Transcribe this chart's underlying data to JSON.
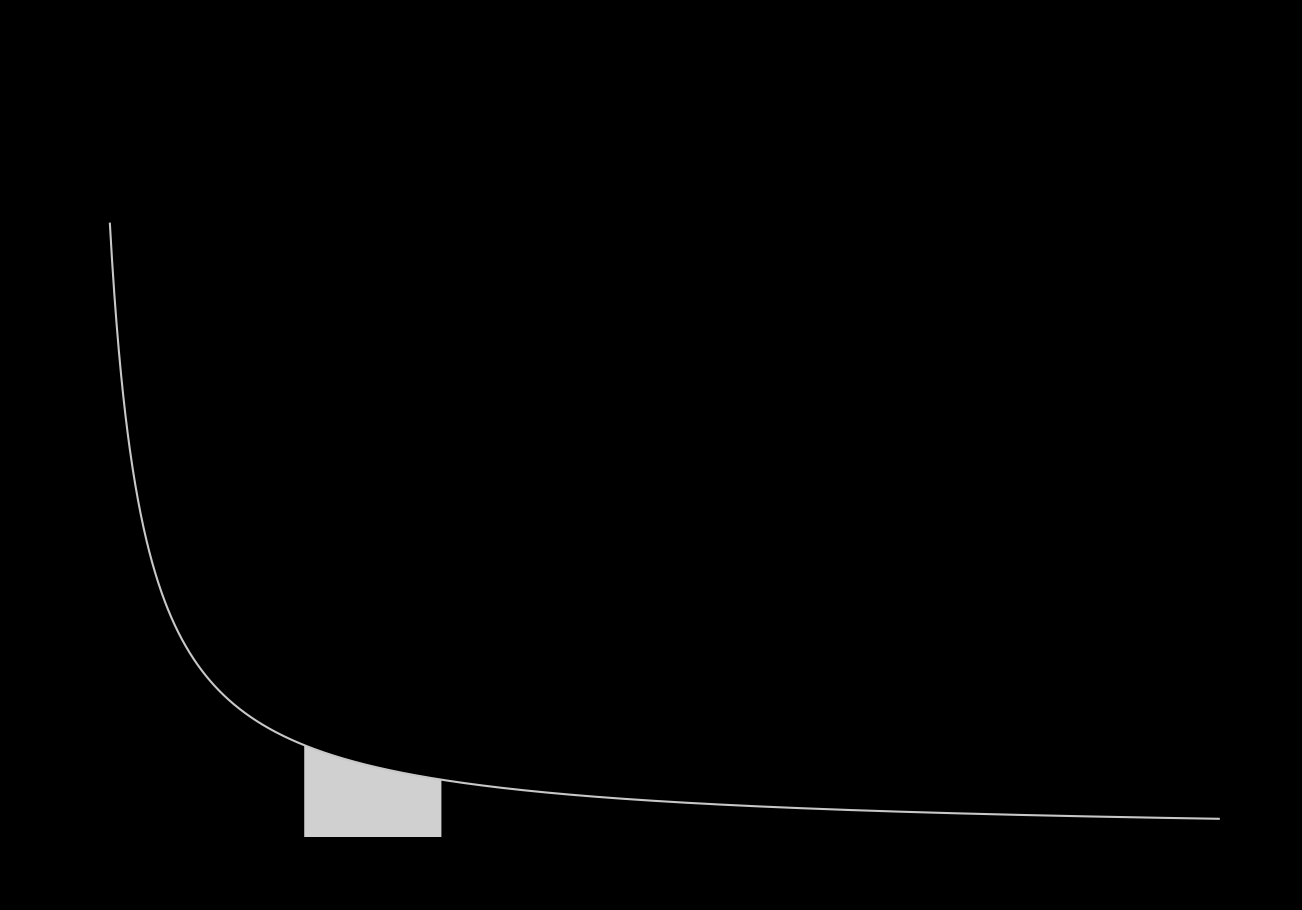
{
  "background_color": "#000000",
  "curve_color": "#c8c8c8",
  "fill_color": "#d0d0d0",
  "fill_alpha": 1.0,
  "x_start": 0.3,
  "x_end": 10.0,
  "v1": 2.0,
  "v2": 3.2,
  "curve_k": 5.0,
  "line_width": 1.5,
  "figsize": [
    13.02,
    9.1
  ],
  "dpi": 100,
  "xlim": [
    0.25,
    10.5
  ],
  "ylim": [
    0.0,
    22.0
  ]
}
